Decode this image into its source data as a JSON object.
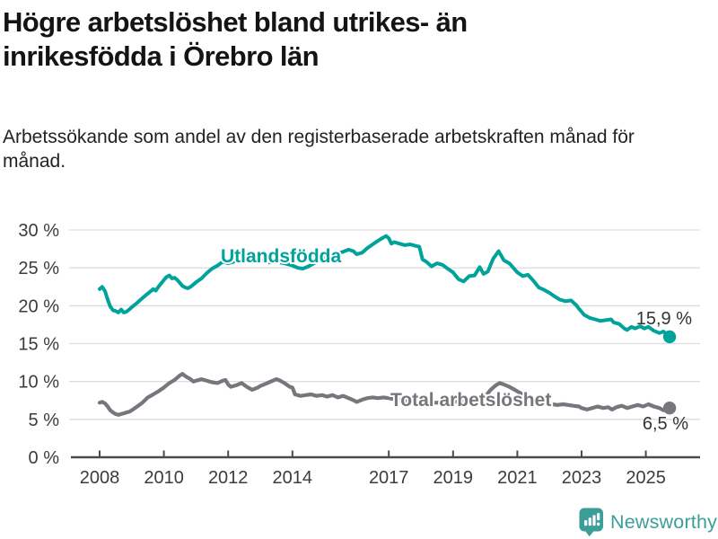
{
  "header": {
    "title": "Högre arbetslöshet bland utrikes- än inrikesfödda i Örebro län",
    "subtitle": "Arbetssökande som andel av den registerbaserade arbetskraften månad för månad."
  },
  "footer": {
    "brand": "Newsworthy"
  },
  "colors": {
    "teal": "#00a39b",
    "gray": "#77767c",
    "grid": "#dddddd",
    "axis": "#4b4b4b",
    "tick_text": "#3c3c3c",
    "value_text": "#333333",
    "title_text": "#141414",
    "logo_teal": "#3b9e99"
  },
  "chart_data": {
    "type": "line",
    "title": "Högre arbetslöshet bland utrikes- än inrikesfödda i Örebro län",
    "subtitle": "Arbetssökande som andel av den registerbaserade arbetskraften månad för månad.",
    "grid": true,
    "legend_position": "inline-labels",
    "x_axis": {
      "range": [
        2007.1,
        2026.7
      ],
      "ticks": [
        2008,
        2010,
        2012,
        2014,
        2017,
        2019,
        2021,
        2023,
        2025
      ],
      "tick_labels": [
        "2008",
        "2010",
        "2012",
        "2014",
        "2017",
        "2019",
        "2021",
        "2023",
        "2025"
      ]
    },
    "y_axis": {
      "unit": "%",
      "range": [
        0,
        30
      ],
      "ticks": [
        0,
        5,
        10,
        15,
        20,
        25,
        30
      ],
      "tick_labels": [
        "0 %",
        "5 %",
        "10 %",
        "15 %",
        "20 %",
        "25 %",
        "30 %"
      ]
    },
    "series": [
      {
        "name": "Utlandsfödda",
        "color": "#00a39b",
        "end_value": 15.9,
        "end_label": "15,9 %",
        "points": [
          [
            2008.0,
            22.2
          ],
          [
            2008.08,
            22.5
          ],
          [
            2008.17,
            21.9
          ],
          [
            2008.25,
            20.8
          ],
          [
            2008.33,
            19.9
          ],
          [
            2008.42,
            19.4
          ],
          [
            2008.5,
            19.3
          ],
          [
            2008.58,
            19.1
          ],
          [
            2008.67,
            19.5
          ],
          [
            2008.75,
            19.1
          ],
          [
            2008.83,
            19.2
          ],
          [
            2008.92,
            19.5
          ],
          [
            2009.0,
            19.8
          ],
          [
            2009.17,
            20.4
          ],
          [
            2009.33,
            21.0
          ],
          [
            2009.5,
            21.6
          ],
          [
            2009.67,
            22.2
          ],
          [
            2009.75,
            22.0
          ],
          [
            2009.83,
            22.5
          ],
          [
            2010.0,
            23.4
          ],
          [
            2010.08,
            23.8
          ],
          [
            2010.17,
            24.0
          ],
          [
            2010.25,
            23.6
          ],
          [
            2010.33,
            23.7
          ],
          [
            2010.42,
            23.4
          ],
          [
            2010.5,
            23.0
          ],
          [
            2010.58,
            22.6
          ],
          [
            2010.67,
            22.4
          ],
          [
            2010.75,
            22.3
          ],
          [
            2010.83,
            22.5
          ],
          [
            2010.92,
            22.8
          ],
          [
            2011.0,
            23.1
          ],
          [
            2011.17,
            23.6
          ],
          [
            2011.33,
            24.3
          ],
          [
            2011.5,
            24.9
          ],
          [
            2011.67,
            25.3
          ],
          [
            2011.83,
            25.8
          ],
          [
            2012.0,
            25.6
          ],
          [
            2012.25,
            25.9
          ],
          [
            2012.5,
            26.1
          ],
          [
            2012.75,
            26.2
          ],
          [
            2013.0,
            26.0
          ],
          [
            2013.25,
            25.7
          ],
          [
            2013.5,
            25.8
          ],
          [
            2013.75,
            25.6
          ],
          [
            2014.0,
            25.3
          ],
          [
            2014.17,
            25.0
          ],
          [
            2014.33,
            24.9
          ],
          [
            2014.5,
            25.2
          ],
          [
            2014.67,
            25.6
          ],
          [
            2014.83,
            25.9
          ],
          [
            2015.0,
            26.2
          ],
          [
            2015.25,
            26.5
          ],
          [
            2015.5,
            27.0
          ],
          [
            2015.75,
            27.4
          ],
          [
            2015.9,
            27.2
          ],
          [
            2016.0,
            26.8
          ],
          [
            2016.17,
            27.0
          ],
          [
            2016.33,
            27.6
          ],
          [
            2016.5,
            28.1
          ],
          [
            2016.67,
            28.6
          ],
          [
            2016.83,
            29.0
          ],
          [
            2016.92,
            29.2
          ],
          [
            2017.0,
            28.9
          ],
          [
            2017.08,
            28.2
          ],
          [
            2017.17,
            28.4
          ],
          [
            2017.33,
            28.2
          ],
          [
            2017.5,
            28.0
          ],
          [
            2017.67,
            28.1
          ],
          [
            2017.83,
            27.9
          ],
          [
            2017.95,
            27.8
          ],
          [
            2018.05,
            26.1
          ],
          [
            2018.17,
            25.8
          ],
          [
            2018.33,
            25.2
          ],
          [
            2018.5,
            25.6
          ],
          [
            2018.67,
            25.4
          ],
          [
            2018.83,
            24.9
          ],
          [
            2019.0,
            24.4
          ],
          [
            2019.17,
            23.5
          ],
          [
            2019.33,
            23.2
          ],
          [
            2019.5,
            23.9
          ],
          [
            2019.67,
            24.0
          ],
          [
            2019.83,
            25.1
          ],
          [
            2019.95,
            24.2
          ],
          [
            2020.08,
            24.5
          ],
          [
            2020.25,
            26.2
          ],
          [
            2020.42,
            27.2
          ],
          [
            2020.58,
            26.0
          ],
          [
            2020.75,
            25.6
          ],
          [
            2020.92,
            24.8
          ],
          [
            2021.0,
            24.4
          ],
          [
            2021.17,
            23.9
          ],
          [
            2021.33,
            24.1
          ],
          [
            2021.5,
            23.3
          ],
          [
            2021.67,
            22.4
          ],
          [
            2021.83,
            22.1
          ],
          [
            2022.0,
            21.7
          ],
          [
            2022.17,
            21.2
          ],
          [
            2022.33,
            20.8
          ],
          [
            2022.5,
            20.6
          ],
          [
            2022.67,
            20.7
          ],
          [
            2022.83,
            20.1
          ],
          [
            2022.92,
            19.6
          ],
          [
            2023.08,
            18.8
          ],
          [
            2023.25,
            18.4
          ],
          [
            2023.42,
            18.2
          ],
          [
            2023.58,
            18.0
          ],
          [
            2023.75,
            18.1
          ],
          [
            2023.92,
            18.2
          ],
          [
            2024.0,
            17.8
          ],
          [
            2024.17,
            17.6
          ],
          [
            2024.33,
            17.0
          ],
          [
            2024.42,
            16.8
          ],
          [
            2024.55,
            17.2
          ],
          [
            2024.67,
            17.0
          ],
          [
            2024.83,
            17.3
          ],
          [
            2024.95,
            17.0
          ],
          [
            2025.08,
            17.2
          ],
          [
            2025.25,
            16.7
          ],
          [
            2025.42,
            16.4
          ],
          [
            2025.55,
            16.6
          ],
          [
            2025.67,
            16.1
          ],
          [
            2025.74,
            15.9
          ]
        ]
      },
      {
        "name": "Total arbetslöshet",
        "color": "#77767c",
        "end_value": 6.5,
        "end_label": "6,5 %",
        "points": [
          [
            2008.0,
            7.2
          ],
          [
            2008.08,
            7.3
          ],
          [
            2008.17,
            7.1
          ],
          [
            2008.25,
            6.7
          ],
          [
            2008.33,
            6.2
          ],
          [
            2008.42,
            5.9
          ],
          [
            2008.5,
            5.7
          ],
          [
            2008.58,
            5.6
          ],
          [
            2008.67,
            5.7
          ],
          [
            2008.75,
            5.8
          ],
          [
            2008.83,
            5.9
          ],
          [
            2008.92,
            6.0
          ],
          [
            2009.0,
            6.2
          ],
          [
            2009.17,
            6.7
          ],
          [
            2009.33,
            7.2
          ],
          [
            2009.5,
            7.9
          ],
          [
            2009.67,
            8.3
          ],
          [
            2009.83,
            8.7
          ],
          [
            2010.0,
            9.2
          ],
          [
            2010.17,
            9.8
          ],
          [
            2010.33,
            10.2
          ],
          [
            2010.5,
            10.8
          ],
          [
            2010.58,
            11.0
          ],
          [
            2010.67,
            10.7
          ],
          [
            2010.83,
            10.3
          ],
          [
            2010.92,
            10.0
          ],
          [
            2011.0,
            10.1
          ],
          [
            2011.17,
            10.3
          ],
          [
            2011.33,
            10.1
          ],
          [
            2011.5,
            9.9
          ],
          [
            2011.67,
            9.8
          ],
          [
            2011.83,
            10.1
          ],
          [
            2011.92,
            10.2
          ],
          [
            2012.0,
            9.6
          ],
          [
            2012.08,
            9.3
          ],
          [
            2012.25,
            9.5
          ],
          [
            2012.42,
            9.8
          ],
          [
            2012.58,
            9.3
          ],
          [
            2012.75,
            8.9
          ],
          [
            2012.92,
            9.2
          ],
          [
            2013.0,
            9.4
          ],
          [
            2013.17,
            9.7
          ],
          [
            2013.33,
            10.0
          ],
          [
            2013.5,
            10.3
          ],
          [
            2013.58,
            10.2
          ],
          [
            2013.75,
            9.8
          ],
          [
            2013.92,
            9.3
          ],
          [
            2014.0,
            9.2
          ],
          [
            2014.08,
            8.3
          ],
          [
            2014.25,
            8.1
          ],
          [
            2014.42,
            8.2
          ],
          [
            2014.58,
            8.3
          ],
          [
            2014.75,
            8.1
          ],
          [
            2014.92,
            8.2
          ],
          [
            2015.08,
            8.0
          ],
          [
            2015.25,
            8.2
          ],
          [
            2015.42,
            7.9
          ],
          [
            2015.58,
            8.1
          ],
          [
            2015.75,
            7.8
          ],
          [
            2015.92,
            7.5
          ],
          [
            2016.0,
            7.3
          ],
          [
            2016.17,
            7.6
          ],
          [
            2016.33,
            7.8
          ],
          [
            2016.5,
            7.9
          ],
          [
            2016.67,
            7.8
          ],
          [
            2016.83,
            7.9
          ],
          [
            2017.0,
            7.8
          ],
          [
            2017.25,
            7.6
          ],
          [
            2017.5,
            7.5
          ],
          [
            2017.75,
            7.4
          ],
          [
            2018.0,
            7.3
          ],
          [
            2018.25,
            7.2
          ],
          [
            2018.5,
            7.2
          ],
          [
            2018.75,
            7.3
          ],
          [
            2019.0,
            7.3
          ],
          [
            2019.25,
            7.4
          ],
          [
            2019.5,
            7.5
          ],
          [
            2019.75,
            7.6
          ],
          [
            2020.0,
            8.0
          ],
          [
            2020.17,
            8.9
          ],
          [
            2020.33,
            9.5
          ],
          [
            2020.45,
            9.8
          ],
          [
            2020.58,
            9.6
          ],
          [
            2020.75,
            9.3
          ],
          [
            2020.92,
            8.9
          ],
          [
            2021.08,
            8.5
          ],
          [
            2021.25,
            8.1
          ],
          [
            2021.42,
            7.8
          ],
          [
            2021.58,
            7.6
          ],
          [
            2021.75,
            7.4
          ],
          [
            2021.92,
            7.2
          ],
          [
            2022.08,
            7.0
          ],
          [
            2022.25,
            6.9
          ],
          [
            2022.42,
            7.0
          ],
          [
            2022.58,
            6.9
          ],
          [
            2022.75,
            6.8
          ],
          [
            2022.92,
            6.7
          ],
          [
            2023.0,
            6.5
          ],
          [
            2023.17,
            6.3
          ],
          [
            2023.33,
            6.5
          ],
          [
            2023.5,
            6.7
          ],
          [
            2023.67,
            6.5
          ],
          [
            2023.83,
            6.6
          ],
          [
            2023.95,
            6.3
          ],
          [
            2024.08,
            6.6
          ],
          [
            2024.25,
            6.8
          ],
          [
            2024.42,
            6.5
          ],
          [
            2024.58,
            6.7
          ],
          [
            2024.75,
            6.9
          ],
          [
            2024.92,
            6.7
          ],
          [
            2025.08,
            7.0
          ],
          [
            2025.25,
            6.7
          ],
          [
            2025.42,
            6.5
          ],
          [
            2025.55,
            6.2
          ],
          [
            2025.65,
            6.3
          ],
          [
            2025.74,
            6.5
          ]
        ]
      }
    ]
  }
}
